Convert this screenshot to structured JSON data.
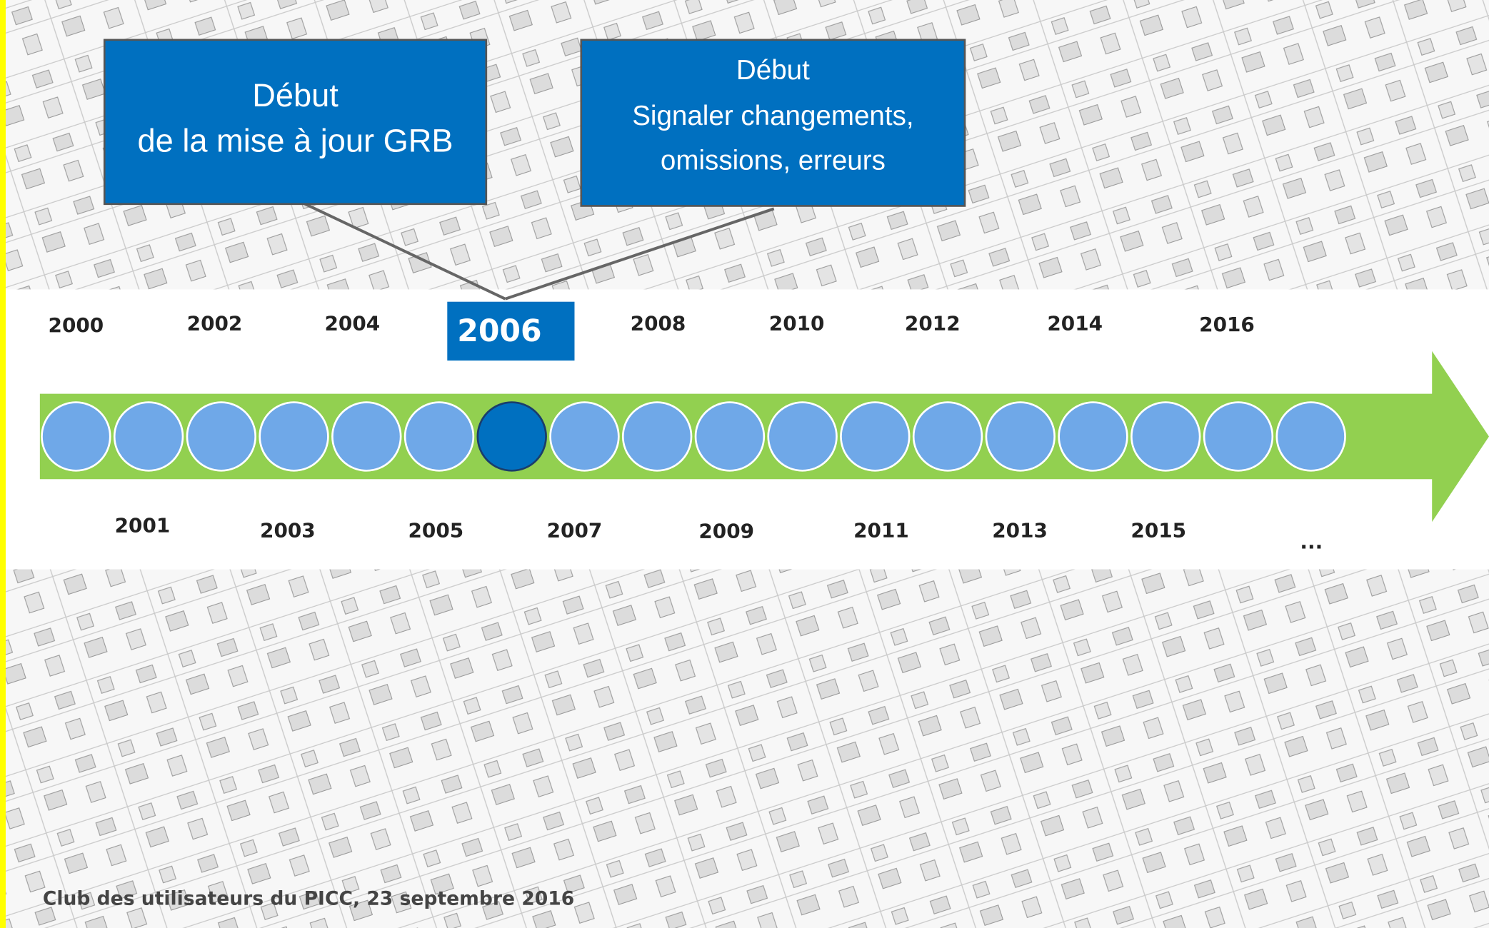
{
  "boxes": [
    {
      "lines": [
        "Début",
        "de la mise à jour GRB"
      ]
    },
    {
      "lines": [
        "Début",
        "Signaler changements,",
        "omissions, erreurs"
      ]
    }
  ],
  "timeline": {
    "highlight": "2006",
    "top_labels": [
      "2000",
      "2002",
      "2004",
      "2008",
      "2010",
      "2012",
      "2014",
      "2016"
    ],
    "bottom_labels": [
      "2001",
      "2003",
      "2005",
      "2007",
      "2009",
      "2011",
      "2013",
      "2015",
      "..."
    ]
  },
  "footer": "Club des utilisateurs du PICC, 23 septembre 2016"
}
